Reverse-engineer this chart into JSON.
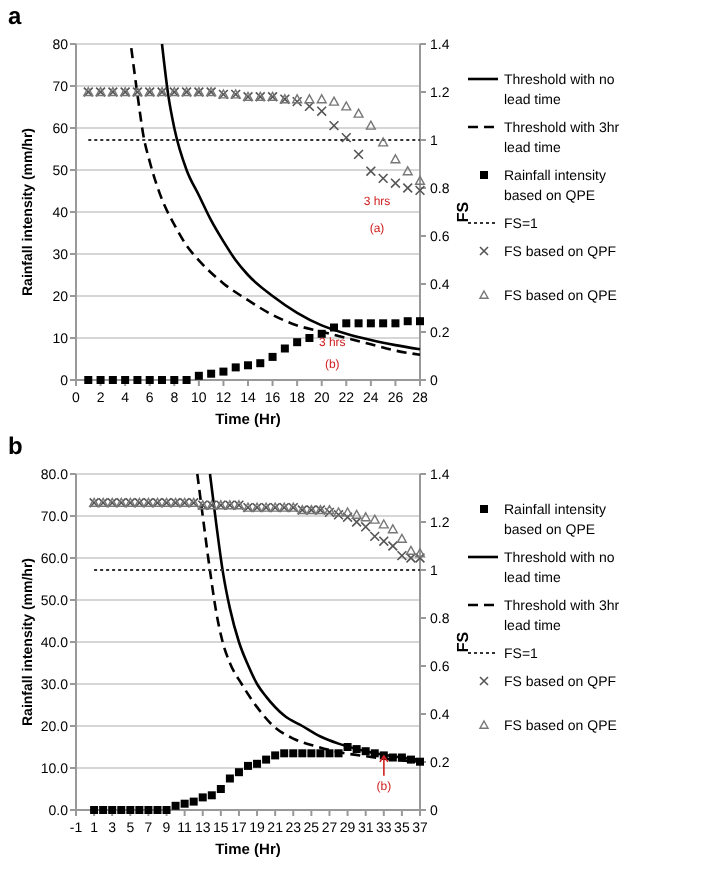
{
  "chart_data": [
    {
      "type": "scatter",
      "title": "a",
      "xlabel": "Time (Hr)",
      "ylabel": "Rainfall intensity (mm/hr)",
      "y2label": "FS",
      "xlim": [
        0,
        28
      ],
      "xticks": [
        0,
        2,
        4,
        6,
        8,
        10,
        12,
        14,
        16,
        18,
        20,
        22,
        24,
        26,
        28
      ],
      "ylim": [
        0,
        80
      ],
      "yticks": [
        0,
        10,
        20,
        30,
        40,
        50,
        60,
        70,
        80
      ],
      "y2lim": [
        0,
        1.4
      ],
      "y2ticks": [
        0,
        0.2,
        0.4,
        0.6,
        0.8,
        1,
        1.2,
        1.4
      ],
      "grid": "y",
      "legend": "right",
      "series": [
        {
          "name": "Threshold with no lead time",
          "type": "line",
          "color": "#000000",
          "marker": "none",
          "line_style": "solid",
          "x": [
            7,
            7.5,
            8,
            9,
            10,
            11,
            12,
            13,
            14,
            16,
            18,
            20,
            22,
            24,
            26,
            28
          ],
          "values": [
            80,
            68,
            60,
            50,
            44,
            38,
            33,
            28.5,
            25,
            20,
            16,
            13,
            11,
            9.5,
            8.3,
            7.3
          ]
        },
        {
          "name": "Threshold with 3hr lead time",
          "type": "line",
          "color": "#000000",
          "marker": "none",
          "line_style": "dashed",
          "x": [
            4.5,
            5,
            5.5,
            6,
            7,
            8,
            9,
            10,
            12,
            14,
            16,
            18,
            20,
            22,
            24,
            26,
            28
          ],
          "values": [
            79,
            68,
            58,
            52,
            43,
            37,
            32,
            28.5,
            23,
            19,
            15.5,
            13,
            11.5,
            10,
            8.5,
            7,
            6
          ]
        },
        {
          "name": "Rainfall intensity based on QPE",
          "type": "scatter",
          "color": "#000000",
          "marker": "square",
          "x": [
            1,
            2,
            3,
            4,
            5,
            6,
            7,
            8,
            9,
            10,
            11,
            12,
            13,
            14,
            15,
            16,
            17,
            18,
            19,
            20,
            21,
            22,
            23,
            24,
            25,
            26,
            27,
            28
          ],
          "values": [
            0,
            0,
            0,
            0,
            0,
            0,
            0,
            0,
            0,
            1,
            1.5,
            2,
            3,
            3.5,
            4,
            5.5,
            7.5,
            9,
            10,
            11,
            12.5,
            13.5,
            13.5,
            13.5,
            13.5,
            13.5,
            14,
            14
          ]
        },
        {
          "name": "FS=1",
          "type": "line",
          "color": "#333333",
          "marker": "none",
          "line_style": "dotted",
          "axis": "y2",
          "x": [
            1,
            28
          ],
          "values": [
            1,
            1
          ]
        },
        {
          "name": "FS based on QPF",
          "type": "scatter",
          "color": "#555555",
          "marker": "cross",
          "axis": "y2",
          "x": [
            1,
            2,
            3,
            4,
            5,
            6,
            7,
            8,
            9,
            10,
            11,
            12,
            13,
            14,
            15,
            16,
            17,
            18,
            19,
            20,
            21,
            22,
            23,
            24,
            25,
            26,
            27,
            28
          ],
          "values": [
            1.2,
            1.2,
            1.2,
            1.2,
            1.2,
            1.2,
            1.2,
            1.2,
            1.2,
            1.2,
            1.2,
            1.19,
            1.19,
            1.18,
            1.18,
            1.18,
            1.17,
            1.16,
            1.14,
            1.12,
            1.06,
            1.01,
            0.94,
            0.87,
            0.84,
            0.82,
            0.8,
            0.79
          ]
        },
        {
          "name": "FS based on QPE",
          "type": "scatter",
          "color": "#777777",
          "marker": "triangle",
          "axis": "y2",
          "x": [
            1,
            2,
            3,
            4,
            5,
            6,
            7,
            8,
            9,
            10,
            11,
            12,
            13,
            14,
            15,
            16,
            17,
            18,
            19,
            20,
            21,
            22,
            23,
            24,
            25,
            26,
            27,
            28
          ],
          "values": [
            1.2,
            1.2,
            1.2,
            1.2,
            1.2,
            1.2,
            1.2,
            1.2,
            1.2,
            1.2,
            1.2,
            1.19,
            1.19,
            1.18,
            1.18,
            1.18,
            1.17,
            1.17,
            1.17,
            1.17,
            1.16,
            1.14,
            1.11,
            1.06,
            0.99,
            0.92,
            0.87,
            0.83
          ]
        }
      ],
      "annotations": [
        "3 hrs",
        "(a)",
        "3 hrs",
        "(b)"
      ]
    },
    {
      "type": "scatter",
      "title": "b",
      "xlabel": "Time (Hr)",
      "ylabel": "Rainfall intensity (mm/hr)",
      "y2label": "FS",
      "xlim": [
        -1,
        37
      ],
      "xticks": [
        -1,
        1,
        3,
        5,
        7,
        9,
        11,
        13,
        15,
        17,
        19,
        21,
        23,
        25,
        27,
        29,
        31,
        33,
        35,
        37
      ],
      "ylim": [
        0,
        80
      ],
      "yticks": [
        {
          "value": 0,
          "label": "0.0"
        },
        {
          "value": 10,
          "label": "10.0"
        },
        {
          "value": 20,
          "label": "20.0"
        },
        {
          "value": 30,
          "label": "30.0"
        },
        {
          "value": 40,
          "label": "40.0"
        },
        {
          "value": 50,
          "label": "50.0"
        },
        {
          "value": 60,
          "label": "60.0"
        },
        {
          "value": 70,
          "label": "70.0"
        },
        {
          "value": 80,
          "label": "80.0"
        }
      ],
      "y2lim": [
        0,
        1.4
      ],
      "y2ticks": [
        0,
        0.2,
        0.4,
        0.6,
        0.8,
        1,
        1.2,
        1.4
      ],
      "grid": "y",
      "legend": "right",
      "series": [
        {
          "name": "Rainfall intensity based on QPE",
          "type": "scatter",
          "color": "#000000",
          "marker": "square",
          "x": [
            1,
            2,
            3,
            4,
            5,
            6,
            7,
            8,
            9,
            10,
            11,
            12,
            13,
            14,
            15,
            16,
            17,
            18,
            19,
            20,
            21,
            22,
            23,
            24,
            25,
            26,
            27,
            28,
            29,
            30,
            31,
            32,
            33,
            34,
            35,
            36,
            37
          ],
          "values": [
            0,
            0,
            0,
            0,
            0,
            0,
            0,
            0,
            0,
            1,
            1.5,
            2,
            3,
            3.5,
            5,
            7.5,
            9,
            10.5,
            11,
            12,
            13,
            13.5,
            13.5,
            13.5,
            13.5,
            13.5,
            13.5,
            13.5,
            15,
            14.5,
            14,
            13.5,
            13,
            12.5,
            12.5,
            12,
            11.5
          ]
        },
        {
          "name": "Threshold with no lead time",
          "type": "line",
          "color": "#000000",
          "marker": "none",
          "line_style": "solid",
          "x": [
            13.8,
            14.5,
            15.2,
            16,
            17,
            18,
            19,
            20,
            22,
            24,
            26,
            28,
            30,
            32,
            34,
            37
          ],
          "values": [
            80,
            68,
            57,
            48,
            40,
            34.5,
            30,
            27,
            22.5,
            20,
            17.5,
            15.8,
            14.5,
            13.5,
            12.8,
            12
          ]
        },
        {
          "name": "Threshold with 3hr lead time",
          "type": "line",
          "color": "#000000",
          "marker": "none",
          "line_style": "dashed",
          "x": [
            12.4,
            13,
            13.8,
            14.5,
            15.2,
            16,
            17.3,
            19,
            20.8,
            23,
            25.8,
            28,
            31,
            34,
            37
          ],
          "values": [
            80,
            70,
            57,
            47,
            40,
            35,
            30,
            24.5,
            20,
            17,
            15,
            13.8,
            12.8,
            12,
            11.5
          ]
        },
        {
          "name": "FS=1",
          "type": "line",
          "color": "#333333",
          "marker": "none",
          "line_style": "dotted",
          "axis": "y2",
          "x": [
            1,
            37
          ],
          "values": [
            1,
            1
          ]
        },
        {
          "name": "FS based on QPF",
          "type": "scatter",
          "color": "#555555",
          "marker": "cross",
          "axis": "y2",
          "x": [
            1,
            2,
            3,
            4,
            5,
            6,
            7,
            8,
            9,
            10,
            11,
            12,
            13,
            14,
            15,
            16,
            17,
            18,
            19,
            20,
            21,
            22,
            23,
            24,
            25,
            26,
            27,
            28,
            29,
            30,
            31,
            32,
            33,
            34,
            35,
            36,
            37
          ],
          "values": [
            1.28,
            1.28,
            1.28,
            1.28,
            1.28,
            1.28,
            1.28,
            1.28,
            1.28,
            1.28,
            1.28,
            1.28,
            1.27,
            1.27,
            1.27,
            1.27,
            1.27,
            1.26,
            1.26,
            1.26,
            1.26,
            1.26,
            1.26,
            1.25,
            1.25,
            1.25,
            1.24,
            1.23,
            1.22,
            1.2,
            1.18,
            1.14,
            1.12,
            1.1,
            1.06,
            1.05,
            1.05
          ]
        },
        {
          "name": "FS based on QPE",
          "type": "scatter",
          "color": "#777777",
          "marker": "triangle",
          "axis": "y2",
          "x": [
            1,
            2,
            3,
            4,
            5,
            6,
            7,
            8,
            9,
            10,
            11,
            12,
            13,
            14,
            15,
            16,
            17,
            18,
            19,
            20,
            21,
            22,
            23,
            24,
            25,
            26,
            27,
            28,
            29,
            30,
            31,
            32,
            33,
            34,
            35,
            36,
            37
          ],
          "values": [
            1.28,
            1.28,
            1.28,
            1.28,
            1.28,
            1.28,
            1.28,
            1.28,
            1.28,
            1.28,
            1.28,
            1.28,
            1.27,
            1.27,
            1.27,
            1.27,
            1.27,
            1.26,
            1.26,
            1.26,
            1.26,
            1.26,
            1.26,
            1.25,
            1.25,
            1.25,
            1.25,
            1.24,
            1.24,
            1.23,
            1.22,
            1.21,
            1.19,
            1.17,
            1.13,
            1.08,
            1.07
          ]
        }
      ],
      "annotations": [
        "(b)"
      ]
    }
  ]
}
